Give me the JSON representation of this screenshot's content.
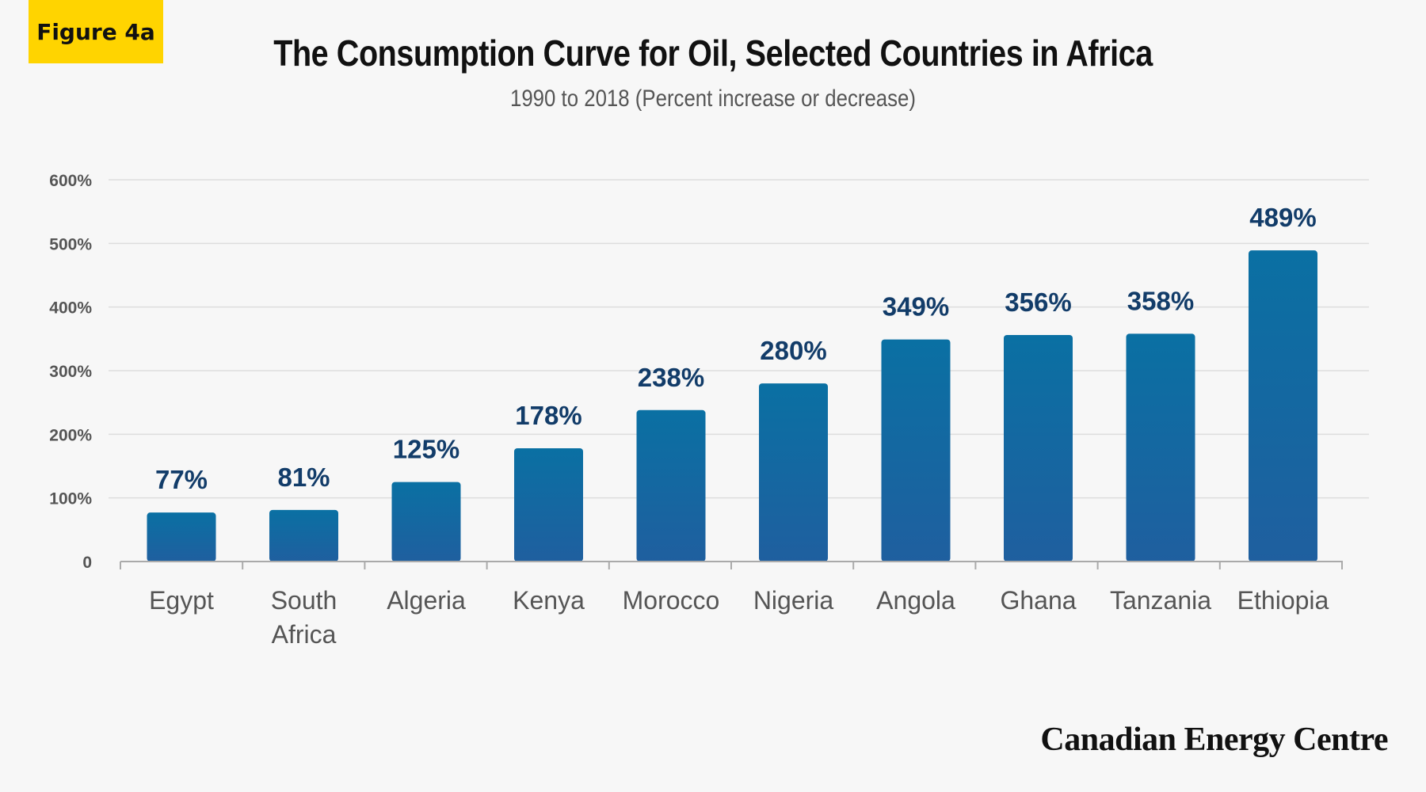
{
  "figure_label": "Figure 4a",
  "brand": "Canadian Energy Centre",
  "colors": {
    "bar_top": "#0a70a3",
    "bar_bottom": "#1f5f9f",
    "data_label": "#123c69",
    "grid": "#dddddd",
    "badge": "#ffd400"
  },
  "chart_data": {
    "type": "bar",
    "title": "The Consumption Curve for Oil, Selected Countries in Africa",
    "subtitle": "1990 to 2018 (Percent increase or decrease)",
    "xlabel": "",
    "ylabel": "",
    "categories": [
      "Egypt",
      "South Africa",
      "Algeria",
      "Kenya",
      "Morocco",
      "Nigeria",
      "Angola",
      "Ghana",
      "Tanzania",
      "Ethiopia"
    ],
    "category_lines": [
      [
        "Egypt"
      ],
      [
        "South",
        "Africa"
      ],
      [
        "Algeria"
      ],
      [
        "Kenya"
      ],
      [
        "Morocco"
      ],
      [
        "Nigeria"
      ],
      [
        "Angola"
      ],
      [
        "Ghana"
      ],
      [
        "Tanzania"
      ],
      [
        "Ethiopia"
      ]
    ],
    "values": [
      77,
      81,
      125,
      178,
      238,
      280,
      349,
      356,
      358,
      489
    ],
    "data_labels": [
      "77%",
      "81%",
      "125%",
      "178%",
      "238%",
      "280%",
      "349%",
      "356%",
      "358%",
      "489%"
    ],
    "yticks": [
      0,
      100,
      200,
      300,
      400,
      500,
      600
    ],
    "ytick_labels": [
      "0",
      "100%",
      "200%",
      "300%",
      "400%",
      "500%",
      "600%"
    ],
    "ylim": [
      0,
      600
    ],
    "grid": true,
    "legend": "none"
  }
}
